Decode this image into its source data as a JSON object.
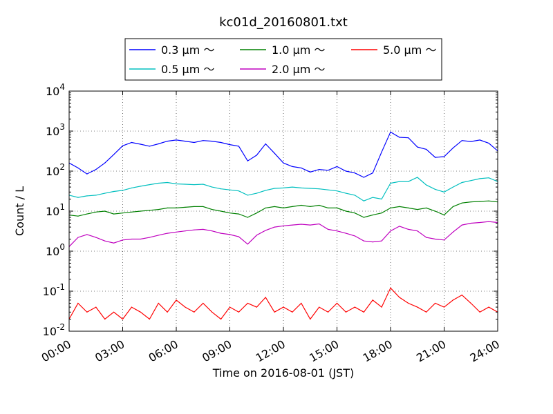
{
  "chart_data": {
    "type": "line",
    "title": "kc01d_20160801.txt",
    "xlabel": "Time on 2016-08-01 (JST)",
    "ylabel": "Count / L",
    "xlim": [
      0,
      24
    ],
    "ylim": [
      0.01,
      10000
    ],
    "yscale": "log",
    "grid": true,
    "legend_position": "top",
    "x_ticks": [
      {
        "value": 0,
        "label": "00:00"
      },
      {
        "value": 3,
        "label": "03:00"
      },
      {
        "value": 6,
        "label": "06:00"
      },
      {
        "value": 9,
        "label": "09:00"
      },
      {
        "value": 12,
        "label": "12:00"
      },
      {
        "value": 15,
        "label": "15:00"
      },
      {
        "value": 18,
        "label": "18:00"
      },
      {
        "value": 21,
        "label": "21:00"
      },
      {
        "value": 24,
        "label": "24:00"
      }
    ],
    "y_ticks": [
      {
        "value": 0.01,
        "base": "10",
        "exp": "-2"
      },
      {
        "value": 0.1,
        "base": "10",
        "exp": "-1"
      },
      {
        "value": 1,
        "base": "10",
        "exp": "0"
      },
      {
        "value": 10,
        "base": "10",
        "exp": "1"
      },
      {
        "value": 100,
        "base": "10",
        "exp": "2"
      },
      {
        "value": 1000,
        "base": "10",
        "exp": "3"
      },
      {
        "value": 10000,
        "base": "10",
        "exp": "4"
      }
    ],
    "x_hours": [
      0,
      0.5,
      1,
      1.5,
      2,
      2.5,
      3,
      3.5,
      4,
      4.5,
      5,
      5.5,
      6,
      6.5,
      7,
      7.5,
      8,
      8.5,
      9,
      9.5,
      10,
      10.5,
      11,
      11.5,
      12,
      12.5,
      13,
      13.5,
      14,
      14.5,
      15,
      15.5,
      16,
      16.5,
      17,
      17.5,
      18,
      18.5,
      19,
      19.5,
      20,
      20.5,
      21,
      21.5,
      22,
      22.5,
      23,
      23.5,
      24
    ],
    "series": [
      {
        "name": "0.3 μm ～",
        "color": "#0000ff",
        "values": [
          160,
          120,
          85,
          110,
          160,
          260,
          430,
          520,
          470,
          420,
          480,
          560,
          600,
          560,
          520,
          580,
          560,
          520,
          460,
          420,
          180,
          250,
          480,
          280,
          160,
          130,
          120,
          95,
          110,
          105,
          130,
          100,
          90,
          70,
          90,
          300,
          950,
          700,
          680,
          400,
          350,
          220,
          230,
          380,
          580,
          550,
          600,
          500,
          320
        ]
      },
      {
        "name": "0.5 μm ～",
        "color": "#00bfbf",
        "values": [
          25,
          22,
          24,
          25,
          28,
          31,
          33,
          38,
          42,
          46,
          50,
          52,
          48,
          47,
          46,
          47,
          40,
          36,
          34,
          32,
          25,
          28,
          33,
          37,
          38,
          40,
          38,
          37,
          36,
          34,
          32,
          28,
          25,
          18,
          22,
          20,
          50,
          55,
          55,
          70,
          45,
          35,
          30,
          40,
          52,
          58,
          65,
          68,
          55
        ]
      },
      {
        "name": "1.0 μm ～",
        "color": "#008000",
        "values": [
          8,
          7.5,
          8.5,
          9.5,
          10,
          8.5,
          9,
          9.5,
          10,
          10.5,
          11,
          12,
          12,
          12.5,
          13,
          13,
          11,
          10,
          9,
          8.5,
          7,
          9,
          12,
          13,
          12,
          13,
          14,
          13,
          14,
          12,
          12,
          10,
          9,
          7,
          8,
          9,
          12,
          13,
          12,
          11,
          12,
          10,
          8,
          13,
          16,
          17,
          17.5,
          18,
          17
        ]
      },
      {
        "name": "2.0 μm ～",
        "color": "#bf00bf",
        "values": [
          1.3,
          2.2,
          2.6,
          2.2,
          1.8,
          1.6,
          1.9,
          2,
          2,
          2.2,
          2.5,
          2.8,
          3,
          3.2,
          3.4,
          3.5,
          3.2,
          2.8,
          2.6,
          2.3,
          1.5,
          2.5,
          3.3,
          4,
          4.3,
          4.5,
          4.7,
          4.5,
          4.8,
          3.5,
          3.2,
          2.8,
          2.4,
          1.8,
          1.7,
          1.8,
          3.2,
          4.2,
          3.5,
          3.2,
          2.2,
          2,
          1.9,
          3,
          4.5,
          5,
          5.2,
          5.5,
          5.2
        ]
      },
      {
        "name": "5.0 μm ～",
        "color": "#ff0000",
        "values": [
          0.02,
          0.05,
          0.03,
          0.04,
          0.02,
          0.03,
          0.02,
          0.04,
          0.03,
          0.02,
          0.05,
          0.03,
          0.06,
          0.04,
          0.03,
          0.05,
          0.03,
          0.02,
          0.04,
          0.03,
          0.05,
          0.04,
          0.07,
          0.03,
          0.04,
          0.03,
          0.05,
          0.02,
          0.04,
          0.03,
          0.05,
          0.03,
          0.04,
          0.03,
          0.06,
          0.04,
          0.12,
          0.07,
          0.05,
          0.04,
          0.03,
          0.05,
          0.04,
          0.06,
          0.08,
          0.05,
          0.03,
          0.04,
          0.03
        ]
      }
    ]
  }
}
